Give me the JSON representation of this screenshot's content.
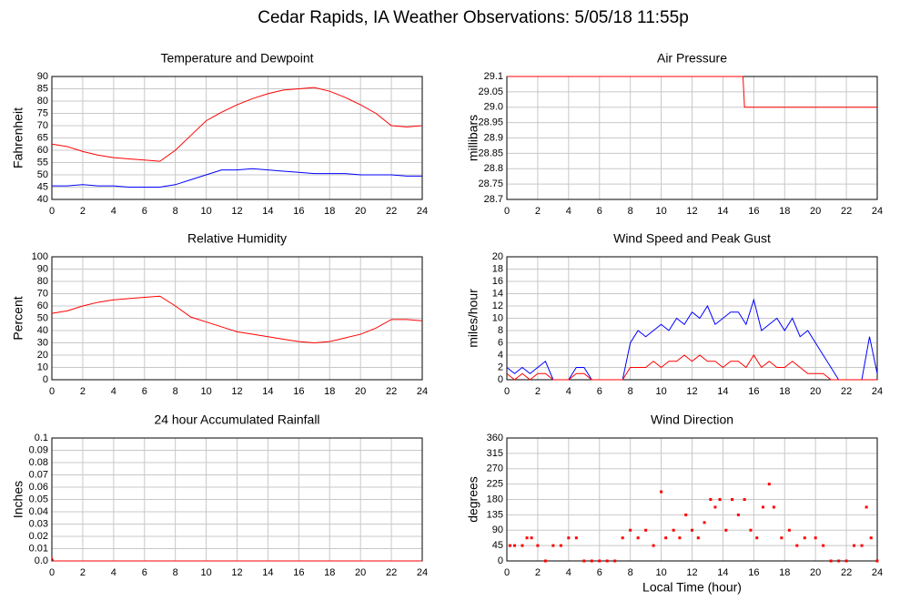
{
  "title": "Cedar Rapids, IA Weather Observations: 5/05/18 11:55p",
  "chart_data": [
    {
      "type": "line",
      "title": "Temperature and Dewpoint",
      "ylabel": "Fahrenheit",
      "x": [
        0,
        1,
        2,
        3,
        4,
        5,
        6,
        7,
        8,
        9,
        10,
        11,
        12,
        13,
        14,
        15,
        16,
        17,
        18,
        19,
        20,
        21,
        22,
        23,
        24
      ],
      "series": [
        {
          "color": "#ff0000",
          "values": [
            62.5,
            61.5,
            59.5,
            58,
            57,
            56.5,
            56,
            55.5,
            60,
            66,
            72,
            75.5,
            78.5,
            81,
            83,
            84.5,
            85,
            85.5,
            84,
            81.5,
            78.5,
            75,
            70,
            69.5,
            70
          ]
        },
        {
          "color": "#0000ff",
          "values": [
            45.5,
            45.5,
            46,
            45.5,
            45.5,
            45,
            45,
            45,
            46,
            48,
            50,
            52,
            52,
            52.5,
            52,
            51.5,
            51,
            50.5,
            50.5,
            50.5,
            50,
            50,
            50,
            49.5,
            49.5
          ]
        }
      ],
      "xlim": [
        0,
        24
      ],
      "xticks": [
        0,
        2,
        4,
        6,
        8,
        10,
        12,
        14,
        16,
        18,
        20,
        22,
        24
      ],
      "ylim": [
        40,
        90
      ],
      "yticks": [
        40,
        45,
        50,
        55,
        60,
        65,
        70,
        75,
        80,
        85,
        90
      ],
      "grid": true
    },
    {
      "type": "line",
      "title": "Air Pressure",
      "ylabel": "millibars",
      "x": [
        0,
        15.3,
        15.4,
        24
      ],
      "series": [
        {
          "color": "#ff0000",
          "values": [
            29.1,
            29.1,
            29.0,
            29.0
          ]
        }
      ],
      "xlim": [
        0,
        24
      ],
      "xticks": [
        0,
        2,
        4,
        6,
        8,
        10,
        12,
        14,
        16,
        18,
        20,
        22,
        24
      ],
      "ylim": [
        28.7,
        29.1
      ],
      "yticks": [
        28.7,
        28.75,
        28.8,
        28.85,
        28.9,
        28.95,
        {
          "value": 29.0,
          "label": "29.0"
        },
        29.05,
        29.1
      ],
      "grid": true
    },
    {
      "type": "line",
      "title": "Relative Humidity",
      "ylabel": "Percent",
      "x": [
        0,
        1,
        2,
        3,
        4,
        5,
        6,
        7,
        8,
        9,
        10,
        11,
        12,
        13,
        14,
        15,
        16,
        17,
        18,
        19,
        20,
        21,
        22,
        23,
        24
      ],
      "series": [
        {
          "color": "#ff0000",
          "values": [
            54,
            56,
            60,
            63,
            65,
            66,
            67,
            68,
            60,
            51,
            47,
            43,
            39,
            37,
            35,
            33,
            31,
            30,
            31,
            34,
            37,
            42,
            49,
            49,
            48
          ]
        }
      ],
      "xlim": [
        0,
        24
      ],
      "xticks": [
        0,
        2,
        4,
        6,
        8,
        10,
        12,
        14,
        16,
        18,
        20,
        22,
        24
      ],
      "ylim": [
        0,
        100
      ],
      "yticks": [
        0,
        10,
        20,
        30,
        40,
        50,
        60,
        70,
        80,
        90,
        100
      ],
      "grid": true
    },
    {
      "type": "line",
      "title": "Wind Speed and Peak Gust",
      "ylabel": "miles/hour",
      "x": [
        0,
        0.5,
        1,
        1.5,
        2,
        2.5,
        3,
        3.5,
        4,
        4.5,
        5,
        5.5,
        6,
        6.5,
        7,
        7.5,
        8,
        8.5,
        9,
        9.5,
        10,
        10.5,
        11,
        11.5,
        12,
        12.5,
        13,
        13.5,
        14,
        14.5,
        15,
        15.5,
        16,
        16.5,
        17,
        17.5,
        18,
        18.5,
        19,
        19.5,
        20,
        20.5,
        21,
        21.5,
        22,
        22.5,
        23,
        23.5,
        24
      ],
      "series": [
        {
          "color": "#0000ff",
          "values": [
            2,
            1,
            2,
            1,
            2,
            3,
            0,
            0,
            0,
            2,
            2,
            0,
            0,
            0,
            0,
            0,
            6,
            8,
            7,
            8,
            9,
            8,
            10,
            9,
            11,
            10,
            12,
            9,
            10,
            11,
            11,
            9,
            13,
            8,
            9,
            10,
            8,
            10,
            7,
            8,
            6,
            4,
            2,
            0,
            0,
            0,
            0,
            7,
            1
          ]
        },
        {
          "color": "#ff0000",
          "values": [
            1,
            0,
            1,
            0,
            1,
            1,
            0,
            0,
            0,
            1,
            1,
            0,
            0,
            0,
            0,
            0,
            2,
            2,
            2,
            3,
            2,
            3,
            3,
            4,
            3,
            4,
            3,
            3,
            2,
            3,
            3,
            2,
            4,
            2,
            3,
            2,
            2,
            3,
            2,
            1,
            1,
            1,
            0,
            0,
            0,
            0,
            0,
            0,
            0
          ]
        }
      ],
      "xlim": [
        0,
        24
      ],
      "xticks": [
        0,
        2,
        4,
        6,
        8,
        10,
        12,
        14,
        16,
        18,
        20,
        22,
        24
      ],
      "ylim": [
        0,
        20
      ],
      "yticks": [
        0,
        2,
        4,
        6,
        8,
        10,
        12,
        14,
        16,
        18,
        20
      ],
      "grid": true
    },
    {
      "type": "line",
      "title": "24 hour Accumulated Rainfall",
      "ylabel": "Inches",
      "x": [
        0,
        0.1,
        24
      ],
      "series": [
        {
          "color": "#ff0000",
          "values": [
            0.003,
            0,
            0
          ]
        }
      ],
      "xlim": [
        0,
        24
      ],
      "xticks": [
        0,
        2,
        4,
        6,
        8,
        10,
        12,
        14,
        16,
        18,
        20,
        22,
        24
      ],
      "ylim": [
        0,
        0.1
      ],
      "yticks": [
        {
          "value": 0,
          "label": "0.0"
        },
        0.01,
        0.02,
        0.03,
        0.04,
        0.05,
        0.06,
        0.07,
        0.08,
        0.09,
        0.1
      ],
      "grid": true
    },
    {
      "type": "scatter",
      "title": "Wind Direction",
      "ylabel": "degrees",
      "xlabel": "Local Time (hour)",
      "x": [
        0.2,
        0.5,
        1,
        1.3,
        1.6,
        2,
        2.5,
        3,
        3.5,
        4,
        4.5,
        5,
        5.5,
        6,
        6.5,
        7,
        7.5,
        8,
        8.5,
        9,
        9.5,
        10,
        10.3,
        10.8,
        11.2,
        11.6,
        12,
        12.4,
        12.8,
        13.2,
        13.5,
        13.8,
        14.2,
        14.6,
        15,
        15.4,
        15.8,
        16.2,
        16.6,
        17,
        17.3,
        17.8,
        18.3,
        18.8,
        19.3,
        20,
        20.5,
        21,
        21.5,
        22,
        22.5,
        23,
        23.3,
        23.6,
        24
      ],
      "series": [
        {
          "color": "#ff0000",
          "values": [
            45,
            45,
            45,
            67.5,
            67.5,
            45,
            0,
            45,
            45,
            67.5,
            67.5,
            0,
            0,
            0,
            0,
            0,
            67.5,
            90,
            67.5,
            90,
            45,
            202.5,
            67.5,
            90,
            67.5,
            135,
            90,
            67.5,
            112.5,
            180,
            157.5,
            180,
            90,
            180,
            135,
            180,
            90,
            67.5,
            157.5,
            225,
            157.5,
            67.5,
            90,
            45,
            67.5,
            67.5,
            45,
            0,
            0,
            0,
            45,
            45,
            157.5,
            67.5,
            0
          ]
        }
      ],
      "xlim": [
        0,
        24
      ],
      "xticks": [
        0,
        2,
        4,
        6,
        8,
        10,
        12,
        14,
        16,
        18,
        20,
        22,
        24
      ],
      "ylim": [
        0,
        360
      ],
      "yticks": [
        0,
        45,
        90,
        135,
        180,
        225,
        270,
        315,
        360
      ],
      "grid": true
    }
  ]
}
